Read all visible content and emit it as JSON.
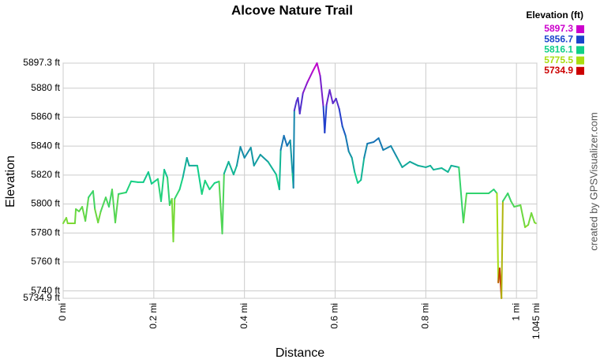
{
  "chart_data": {
    "type": "line",
    "title": "Alcove Nature Trail",
    "x_label": "Distance",
    "y_label": "Elevation",
    "credit": "created by GPSVisualizer.com",
    "legend_title": "Elevation (ft)",
    "color_scale": [
      {
        "value": 5897.3,
        "color": "#cc00cc"
      },
      {
        "value": 5856.7,
        "color": "#1a44cc"
      },
      {
        "value": 5816.1,
        "color": "#10d088"
      },
      {
        "value": 5775.5,
        "color": "#aadd10"
      },
      {
        "value": 5734.9,
        "color": "#cc0000"
      }
    ],
    "xlim": [
      0,
      1.045
    ],
    "ylim": [
      5734.9,
      5897.3
    ],
    "xticks": [
      {
        "value": 0,
        "label": "0 mi"
      },
      {
        "value": 0.2,
        "label": "0.2 mi"
      },
      {
        "value": 0.4,
        "label": "0.4 mi"
      },
      {
        "value": 0.6,
        "label": "0.6 mi"
      },
      {
        "value": 0.8,
        "label": "0.8 mi"
      },
      {
        "value": 1,
        "label": "1 mi"
      },
      {
        "value": 1.045,
        "label": "1.045 mi"
      }
    ],
    "yticks": [
      {
        "value": 5734.9,
        "label": "5734.9 ft"
      },
      {
        "value": 5740,
        "label": "5740 ft"
      },
      {
        "value": 5760,
        "label": "5760 ft"
      },
      {
        "value": 5780,
        "label": "5780 ft"
      },
      {
        "value": 5800,
        "label": "5800 ft"
      },
      {
        "value": 5820,
        "label": "5820 ft"
      },
      {
        "value": 5840,
        "label": "5840 ft"
      },
      {
        "value": 5860,
        "label": "5860 ft"
      },
      {
        "value": 5880,
        "label": "5880 ft"
      },
      {
        "value": 5897.3,
        "label": "5897.3 ft"
      }
    ],
    "grid": true,
    "x": [
      0,
      0.007,
      0.01,
      0.026,
      0.028,
      0.035,
      0.042,
      0.049,
      0.056,
      0.066,
      0.07,
      0.077,
      0.083,
      0.094,
      0.101,
      0.108,
      0.115,
      0.122,
      0.139,
      0.15,
      0.165,
      0.177,
      0.188,
      0.195,
      0.209,
      0.216,
      0.223,
      0.23,
      0.235,
      0.24,
      0.243,
      0.246,
      0.257,
      0.264,
      0.273,
      0.278,
      0.296,
      0.306,
      0.313,
      0.323,
      0.334,
      0.344,
      0.351,
      0.355,
      0.365,
      0.376,
      0.383,
      0.391,
      0.4,
      0.414,
      0.421,
      0.435,
      0.452,
      0.47,
      0.477,
      0.48,
      0.487,
      0.494,
      0.501,
      0.506,
      0.508,
      0.51,
      0.515,
      0.518,
      0.522,
      0.529,
      0.539,
      0.55,
      0.56,
      0.567,
      0.574,
      0.577,
      0.581,
      0.588,
      0.595,
      0.602,
      0.609,
      0.616,
      0.623,
      0.63,
      0.637,
      0.643,
      0.65,
      0.657,
      0.664,
      0.671,
      0.685,
      0.696,
      0.706,
      0.723,
      0.737,
      0.748,
      0.765,
      0.783,
      0.8,
      0.81,
      0.817,
      0.835,
      0.849,
      0.856,
      0.873,
      0.883,
      0.89,
      0.939,
      0.95,
      0.957,
      0.96,
      0.963,
      0.967,
      0.97,
      0.981,
      0.988,
      0.995,
      1.009,
      1.019,
      1.026,
      1.033,
      1.04,
      1.043
    ],
    "values": [
      5786.7,
      5790.5,
      5786.7,
      5786.7,
      5796.5,
      5794.9,
      5798.1,
      5788.3,
      5804.6,
      5809.0,
      5796.5,
      5787.2,
      5794.9,
      5804.6,
      5798.1,
      5810.1,
      5787.2,
      5806.9,
      5808.0,
      5815.7,
      5815.1,
      5815.1,
      5822.1,
      5814.0,
      5817.3,
      5801.9,
      5823.7,
      5818.3,
      5799.2,
      5803.6,
      5774.1,
      5803.6,
      5810.1,
      5818.3,
      5831.9,
      5826.5,
      5826.5,
      5806.9,
      5816.2,
      5810.1,
      5814.5,
      5815.6,
      5779.6,
      5821.0,
      5829.2,
      5820.4,
      5826.5,
      5839.5,
      5831.9,
      5839.0,
      5826.5,
      5834.1,
      5829.2,
      5820.4,
      5810.1,
      5837.3,
      5847.2,
      5840.1,
      5844.0,
      5821.0,
      5811.2,
      5864.6,
      5871.1,
      5873.3,
      5862.4,
      5876.6,
      5884.2,
      5891.3,
      5897.3,
      5888.6,
      5867.3,
      5849.3,
      5868.4,
      5878.8,
      5869.5,
      5872.8,
      5865.7,
      5853.7,
      5847.2,
      5836.3,
      5831.9,
      5822.1,
      5814.5,
      5816.6,
      5831.9,
      5841.7,
      5842.8,
      5845.5,
      5837.3,
      5840.1,
      5831.9,
      5825.4,
      5829.2,
      5826.5,
      5825.4,
      5826.5,
      5823.7,
      5824.8,
      5822.1,
      5826.5,
      5825.4,
      5787.2,
      5807.4,
      5807.4,
      5810.1,
      5807.4,
      5745.8,
      5755.6,
      5734.9,
      5801.9,
      5807.4,
      5801.9,
      5798.1,
      5799.2,
      5784.0,
      5785.6,
      5793.8,
      5787.2,
      5786.7
    ]
  }
}
